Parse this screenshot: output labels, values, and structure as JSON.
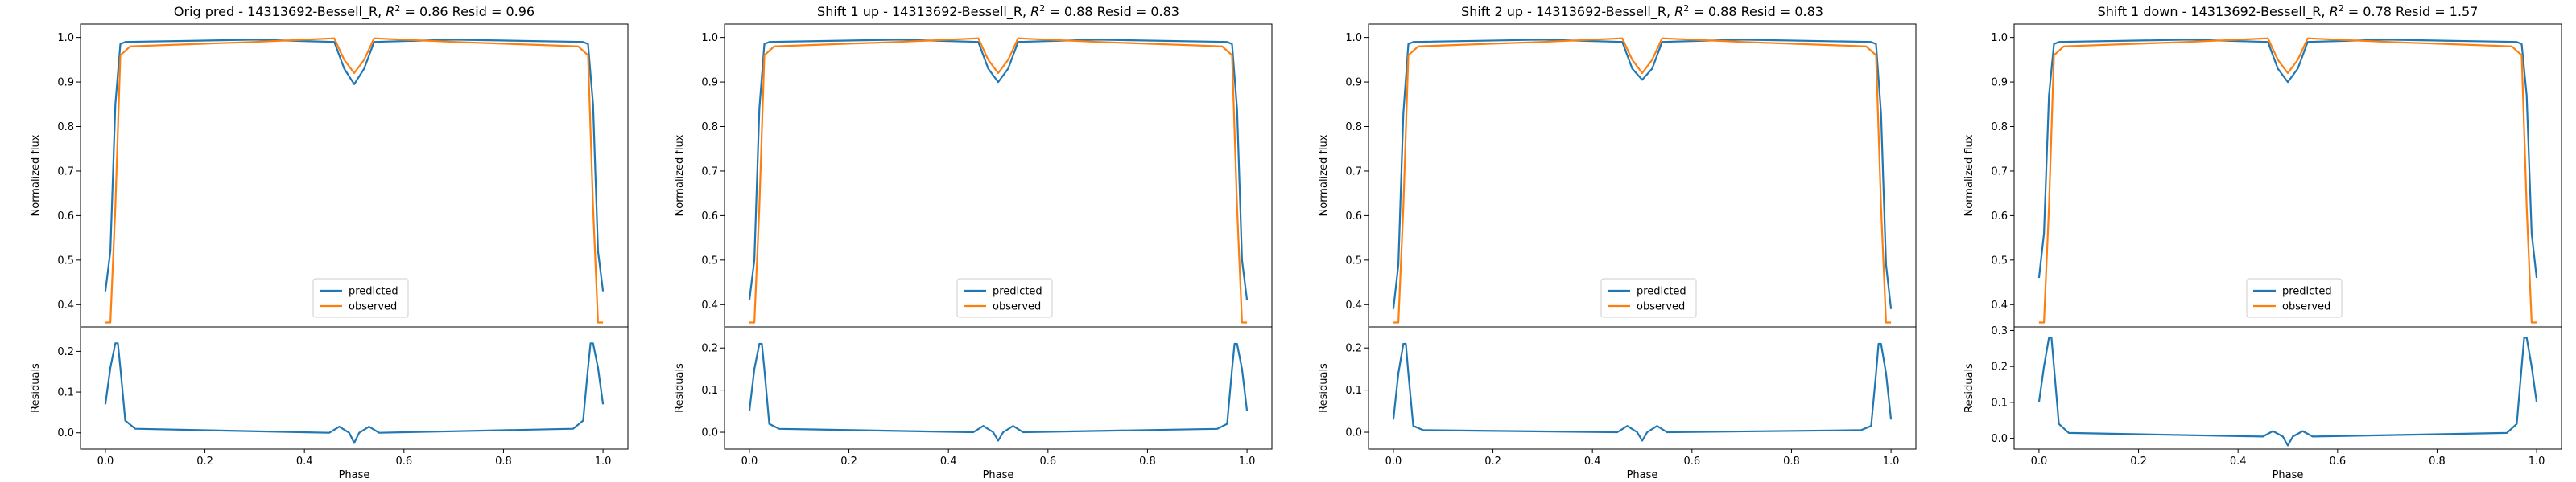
{
  "figure": {
    "colors": {
      "predicted": "#1f77b4",
      "observed": "#ff7f0e",
      "axis": "#000000"
    }
  },
  "chart_data": [
    {
      "type": "line",
      "title": "Orig pred - 14313692-Bessell_R, $R^2 = 0.86$ Resid = 0.96",
      "title_parts": {
        "prefix": "Orig pred - 14313692-Bessell_R, ",
        "r2_symbol": "R",
        "r2_exp": "2",
        "r2_value": " = 0.86",
        "resid": " Resid = 0.96"
      },
      "top": {
        "ylabel": "Normalized flux",
        "ylim": [
          0.35,
          1.03
        ],
        "yticks": [
          0.4,
          0.5,
          0.6,
          0.7,
          0.8,
          0.9,
          1.0
        ],
        "ytick_labels": [
          "0.4",
          "0.5",
          "0.6",
          "0.7",
          "0.8",
          "0.9",
          "1.0"
        ],
        "legend": {
          "placement": "lower-center",
          "entries": [
            "predicted",
            "observed"
          ]
        },
        "series": [
          {
            "name": "predicted",
            "x": [
              0,
              0.01,
              0.02,
              0.03,
              0.04,
              0.3,
              0.46,
              0.48,
              0.5,
              0.52,
              0.54,
              0.7,
              0.96,
              0.97,
              0.98,
              0.99,
              1.0
            ],
            "y": [
              0.43,
              0.52,
              0.85,
              0.985,
              0.99,
              0.995,
              0.99,
              0.93,
              0.895,
              0.93,
              0.99,
              0.995,
              0.99,
              0.985,
              0.85,
              0.52,
              0.43
            ]
          },
          {
            "name": "observed",
            "x": [
              0,
              0.01,
              0.02,
              0.03,
              0.05,
              0.3,
              0.46,
              0.48,
              0.5,
              0.52,
              0.54,
              0.7,
              0.95,
              0.97,
              0.98,
              0.99,
              1.0
            ],
            "y": [
              0.36,
              0.36,
              0.62,
              0.96,
              0.98,
              0.99,
              0.998,
              0.95,
              0.92,
              0.95,
              0.998,
              0.99,
              0.98,
              0.96,
              0.62,
              0.36,
              0.36
            ]
          }
        ]
      },
      "bottom": {
        "xlabel": "Phase",
        "ylabel": "Residuals",
        "xlim": [
          -0.05,
          1.05
        ],
        "ylim": [
          -0.04,
          0.26
        ],
        "xticks": [
          0,
          0.2,
          0.4,
          0.6,
          0.8,
          1.0
        ],
        "xtick_labels": [
          "0.0",
          "0.2",
          "0.4",
          "0.6",
          "0.8",
          "1.0"
        ],
        "yticks": [
          0,
          0.1,
          0.2
        ],
        "ytick_labels": [
          "0.0",
          "0.1",
          "0.2"
        ],
        "series": [
          {
            "name": "residuals",
            "x": [
              0,
              0.01,
              0.02,
              0.025,
              0.03,
              0.04,
              0.06,
              0.45,
              0.47,
              0.49,
              0.5,
              0.51,
              0.53,
              0.55,
              0.94,
              0.96,
              0.97,
              0.975,
              0.98,
              0.99,
              1.0
            ],
            "y": [
              0.07,
              0.16,
              0.22,
              0.22,
              0.16,
              0.03,
              0.01,
              0.0,
              0.015,
              0.0,
              -0.025,
              0.0,
              0.015,
              0.0,
              0.01,
              0.03,
              0.16,
              0.22,
              0.22,
              0.16,
              0.07
            ]
          }
        ]
      }
    },
    {
      "type": "line",
      "title": "Shift 1 up - 14313692-Bessell_R, $R^2 = 0.88$ Resid = 0.83",
      "title_parts": {
        "prefix": "Shift 1 up - 14313692-Bessell_R, ",
        "r2_symbol": "R",
        "r2_exp": "2",
        "r2_value": " = 0.88",
        "resid": " Resid = 0.83"
      },
      "top": {
        "ylabel": "Normalized flux",
        "ylim": [
          0.35,
          1.03
        ],
        "yticks": [
          0.4,
          0.5,
          0.6,
          0.7,
          0.8,
          0.9,
          1.0
        ],
        "ytick_labels": [
          "0.4",
          "0.5",
          "0.6",
          "0.7",
          "0.8",
          "0.9",
          "1.0"
        ],
        "legend": {
          "placement": "lower-center",
          "entries": [
            "predicted",
            "observed"
          ]
        },
        "series": [
          {
            "name": "predicted",
            "x": [
              0,
              0.01,
              0.02,
              0.03,
              0.04,
              0.3,
              0.46,
              0.48,
              0.5,
              0.52,
              0.54,
              0.7,
              0.96,
              0.97,
              0.98,
              0.99,
              1.0
            ],
            "y": [
              0.41,
              0.5,
              0.84,
              0.985,
              0.99,
              0.995,
              0.99,
              0.93,
              0.9,
              0.93,
              0.99,
              0.995,
              0.99,
              0.985,
              0.84,
              0.5,
              0.41
            ]
          },
          {
            "name": "observed",
            "x": [
              0,
              0.01,
              0.02,
              0.03,
              0.05,
              0.3,
              0.46,
              0.48,
              0.5,
              0.52,
              0.54,
              0.7,
              0.95,
              0.97,
              0.98,
              0.99,
              1.0
            ],
            "y": [
              0.36,
              0.36,
              0.62,
              0.96,
              0.98,
              0.99,
              0.998,
              0.95,
              0.92,
              0.95,
              0.998,
              0.99,
              0.98,
              0.96,
              0.62,
              0.36,
              0.36
            ]
          }
        ]
      },
      "bottom": {
        "xlabel": "Phase",
        "ylabel": "Residuals",
        "xlim": [
          -0.05,
          1.05
        ],
        "ylim": [
          -0.04,
          0.25
        ],
        "xticks": [
          0,
          0.2,
          0.4,
          0.6,
          0.8,
          1.0
        ],
        "xtick_labels": [
          "0.0",
          "0.2",
          "0.4",
          "0.6",
          "0.8",
          "1.0"
        ],
        "yticks": [
          0,
          0.1,
          0.2
        ],
        "ytick_labels": [
          "0.0",
          "0.1",
          "0.2"
        ],
        "series": [
          {
            "name": "residuals",
            "x": [
              0,
              0.01,
              0.02,
              0.025,
              0.03,
              0.04,
              0.06,
              0.45,
              0.47,
              0.49,
              0.5,
              0.51,
              0.53,
              0.55,
              0.94,
              0.96,
              0.97,
              0.975,
              0.98,
              0.99,
              1.0
            ],
            "y": [
              0.05,
              0.15,
              0.21,
              0.21,
              0.15,
              0.02,
              0.008,
              0.0,
              0.015,
              0.0,
              -0.02,
              0.0,
              0.015,
              0.0,
              0.008,
              0.02,
              0.15,
              0.21,
              0.21,
              0.15,
              0.05
            ]
          }
        ]
      }
    },
    {
      "type": "line",
      "title": "Shift 2 up - 14313692-Bessell_R, $R^2 = 0.88$ Resid = 0.83",
      "title_parts": {
        "prefix": "Shift 2 up - 14313692-Bessell_R, ",
        "r2_symbol": "R",
        "r2_exp": "2",
        "r2_value": " = 0.88",
        "resid": " Resid = 0.83"
      },
      "top": {
        "ylabel": "Normalized flux",
        "ylim": [
          0.35,
          1.03
        ],
        "yticks": [
          0.4,
          0.5,
          0.6,
          0.7,
          0.8,
          0.9,
          1.0
        ],
        "ytick_labels": [
          "0.4",
          "0.5",
          "0.6",
          "0.7",
          "0.8",
          "0.9",
          "1.0"
        ],
        "legend": {
          "placement": "lower-center",
          "entries": [
            "predicted",
            "observed"
          ]
        },
        "series": [
          {
            "name": "predicted",
            "x": [
              0,
              0.01,
              0.02,
              0.03,
              0.04,
              0.3,
              0.46,
              0.48,
              0.5,
              0.52,
              0.54,
              0.7,
              0.96,
              0.97,
              0.98,
              0.99,
              1.0
            ],
            "y": [
              0.39,
              0.49,
              0.83,
              0.985,
              0.99,
              0.995,
              0.99,
              0.93,
              0.905,
              0.93,
              0.99,
              0.995,
              0.99,
              0.985,
              0.83,
              0.49,
              0.39
            ]
          },
          {
            "name": "observed",
            "x": [
              0,
              0.01,
              0.02,
              0.03,
              0.05,
              0.3,
              0.46,
              0.48,
              0.5,
              0.52,
              0.54,
              0.7,
              0.95,
              0.97,
              0.98,
              0.99,
              1.0
            ],
            "y": [
              0.36,
              0.36,
              0.62,
              0.96,
              0.98,
              0.99,
              0.998,
              0.95,
              0.92,
              0.95,
              0.998,
              0.99,
              0.98,
              0.96,
              0.62,
              0.36,
              0.36
            ]
          }
        ]
      },
      "bottom": {
        "xlabel": "Phase",
        "ylabel": "Residuals",
        "xlim": [
          -0.05,
          1.05
        ],
        "ylim": [
          -0.04,
          0.25
        ],
        "xticks": [
          0,
          0.2,
          0.4,
          0.6,
          0.8,
          1.0
        ],
        "xtick_labels": [
          "0.0",
          "0.2",
          "0.4",
          "0.6",
          "0.8",
          "1.0"
        ],
        "yticks": [
          0,
          0.1,
          0.2
        ],
        "ytick_labels": [
          "0.0",
          "0.1",
          "0.2"
        ],
        "series": [
          {
            "name": "residuals",
            "x": [
              0,
              0.01,
              0.02,
              0.025,
              0.03,
              0.04,
              0.06,
              0.45,
              0.47,
              0.49,
              0.5,
              0.51,
              0.53,
              0.55,
              0.94,
              0.96,
              0.97,
              0.975,
              0.98,
              0.99,
              1.0
            ],
            "y": [
              0.03,
              0.14,
              0.21,
              0.21,
              0.14,
              0.015,
              0.005,
              0.0,
              0.015,
              0.0,
              -0.02,
              0.0,
              0.015,
              0.0,
              0.005,
              0.015,
              0.14,
              0.21,
              0.21,
              0.14,
              0.03
            ]
          }
        ]
      }
    },
    {
      "type": "line",
      "title": "Shift 1 down - 14313692-Bessell_R, $R^2 = 0.78$ Resid = 1.57",
      "title_parts": {
        "prefix": "Shift 1 down - 14313692-Bessell_R, ",
        "r2_symbol": "R",
        "r2_exp": "2",
        "r2_value": " = 0.78",
        "resid": " Resid = 1.57"
      },
      "top": {
        "ylabel": "Normalized flux",
        "ylim": [
          0.35,
          1.03
        ],
        "yticks": [
          0.4,
          0.5,
          0.6,
          0.7,
          0.8,
          0.9,
          1.0
        ],
        "ytick_labels": [
          "0.4",
          "0.5",
          "0.6",
          "0.7",
          "0.8",
          "0.9",
          "1.0"
        ],
        "legend": {
          "placement": "lower-center",
          "entries": [
            "predicted",
            "observed"
          ]
        },
        "series": [
          {
            "name": "predicted",
            "x": [
              0,
              0.01,
              0.02,
              0.03,
              0.04,
              0.3,
              0.46,
              0.48,
              0.5,
              0.52,
              0.54,
              0.7,
              0.96,
              0.97,
              0.98,
              0.99,
              1.0
            ],
            "y": [
              0.46,
              0.56,
              0.87,
              0.985,
              0.99,
              0.995,
              0.99,
              0.93,
              0.9,
              0.93,
              0.99,
              0.995,
              0.99,
              0.985,
              0.87,
              0.56,
              0.46
            ]
          },
          {
            "name": "observed",
            "x": [
              0,
              0.01,
              0.02,
              0.03,
              0.05,
              0.3,
              0.46,
              0.48,
              0.5,
              0.52,
              0.54,
              0.7,
              0.95,
              0.97,
              0.98,
              0.99,
              1.0
            ],
            "y": [
              0.36,
              0.36,
              0.62,
              0.96,
              0.98,
              0.99,
              0.998,
              0.95,
              0.92,
              0.95,
              0.998,
              0.99,
              0.98,
              0.96,
              0.62,
              0.36,
              0.36
            ]
          }
        ]
      },
      "bottom": {
        "xlabel": "Phase",
        "ylabel": "Residuals",
        "xlim": [
          -0.05,
          1.05
        ],
        "ylim": [
          -0.03,
          0.31
        ],
        "xticks": [
          0,
          0.2,
          0.4,
          0.6,
          0.8,
          1.0
        ],
        "xtick_labels": [
          "0.0",
          "0.2",
          "0.4",
          "0.6",
          "0.8",
          "1.0"
        ],
        "yticks": [
          0,
          0.1,
          0.2,
          0.3
        ],
        "ytick_labels": [
          "0.0",
          "0.1",
          "0.2",
          "0.3"
        ],
        "series": [
          {
            "name": "residuals",
            "x": [
              0,
              0.01,
              0.02,
              0.025,
              0.03,
              0.04,
              0.06,
              0.45,
              0.47,
              0.49,
              0.5,
              0.51,
              0.53,
              0.55,
              0.94,
              0.96,
              0.97,
              0.975,
              0.98,
              0.99,
              1.0
            ],
            "y": [
              0.1,
              0.2,
              0.28,
              0.28,
              0.2,
              0.04,
              0.015,
              0.005,
              0.02,
              0.005,
              -0.02,
              0.005,
              0.02,
              0.005,
              0.015,
              0.04,
              0.2,
              0.28,
              0.28,
              0.2,
              0.1
            ]
          }
        ]
      }
    }
  ]
}
